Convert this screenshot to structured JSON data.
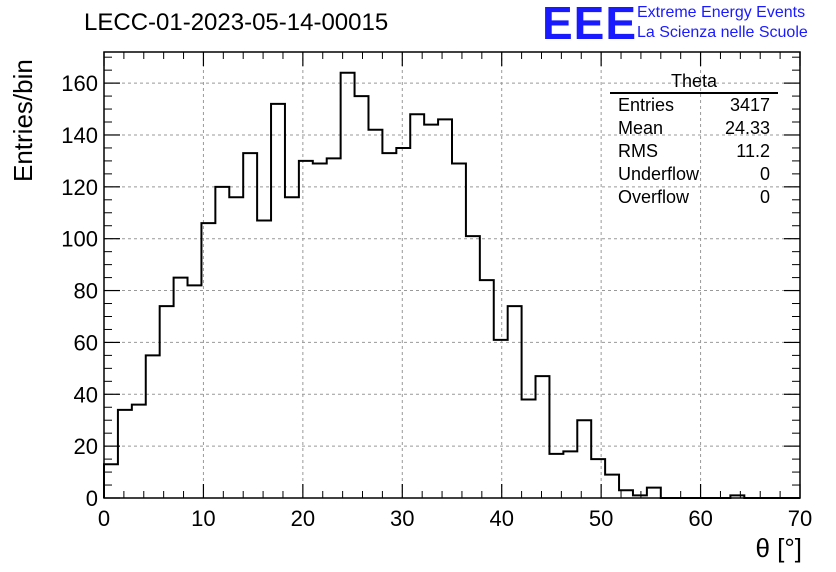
{
  "header": {
    "title": "LECC-01-2023-05-14-00015",
    "logo_mark": "EEE",
    "logo_line1": "Extreme Energy Events",
    "logo_line2": "La Scienza nelle Scuole"
  },
  "stats": {
    "title": "Theta",
    "rows": [
      {
        "label": "Entries",
        "value": "3417"
      },
      {
        "label": "Mean",
        "value": "24.33"
      },
      {
        "label": "RMS",
        "value": "11.2"
      },
      {
        "label": "Underflow",
        "value": "0"
      },
      {
        "label": "Overflow",
        "value": "0"
      }
    ]
  },
  "colors": {
    "histogram": "#000000",
    "logo": "#1a1aff",
    "grid": "#999999"
  },
  "chart_data": {
    "type": "bar",
    "title": "LECC-01-2023-05-14-00015",
    "xlabel": "θ [°]",
    "ylabel": "Entries/bin",
    "xlim": [
      0,
      70
    ],
    "ylim": [
      0,
      172
    ],
    "grid": true,
    "legend": "top-right",
    "bin_width": 1.4,
    "bin_start": 0,
    "x_ticks": [
      "0",
      "10",
      "20",
      "30",
      "40",
      "50",
      "60",
      "70"
    ],
    "y_ticks": [
      "0",
      "20",
      "40",
      "60",
      "80",
      "100",
      "120",
      "140",
      "160"
    ],
    "series": [
      {
        "name": "Theta",
        "values": [
          13,
          34,
          36,
          55,
          74,
          85,
          82,
          106,
          120,
          116,
          133,
          107,
          152,
          116,
          130,
          129,
          131,
          164,
          155,
          142,
          133,
          135,
          148,
          144,
          146,
          129,
          101,
          84,
          61,
          74,
          38,
          47,
          17,
          18,
          30,
          15,
          9,
          3,
          1,
          4,
          0,
          0,
          0,
          0,
          0,
          1,
          0,
          0,
          0,
          0
        ]
      }
    ]
  }
}
